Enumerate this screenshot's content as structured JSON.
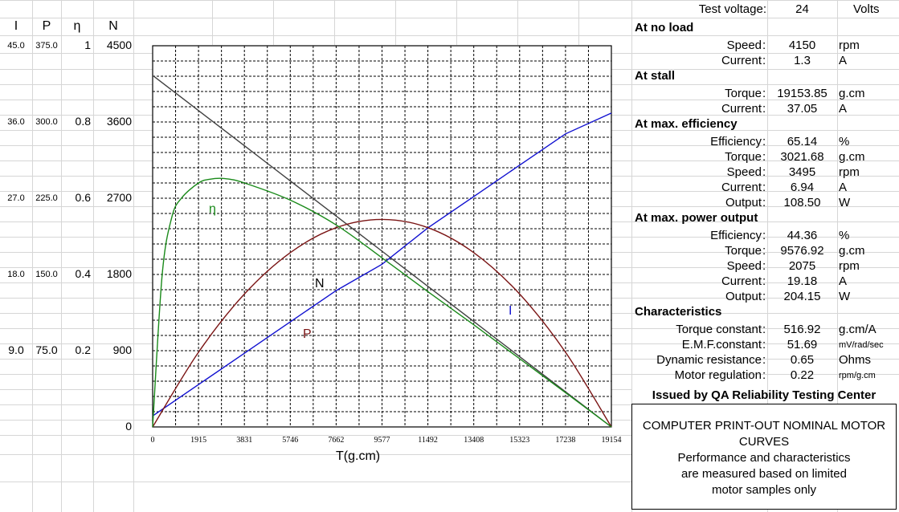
{
  "left_headers": {
    "i": "I",
    "p": "P",
    "eta": "η",
    "n": "N"
  },
  "left_rows": [
    {
      "i": "45.0",
      "p": "375.0",
      "eta": "1",
      "n": "4500"
    },
    {
      "i": "36.0",
      "p": "300.0",
      "eta": "0.8",
      "n": "3600"
    },
    {
      "i": "27.0",
      "p": "225.0",
      "eta": "0.6",
      "n": "2700"
    },
    {
      "i": "18.0",
      "p": "150.0",
      "eta": "0.4",
      "n": "1800"
    },
    {
      "i": "9.0",
      "p": "75.0",
      "eta": "0.2",
      "n": "900"
    },
    {
      "i": "",
      "p": "",
      "eta": "",
      "n": "0"
    }
  ],
  "test_voltage": {
    "label": "Test voltage:",
    "value": "24",
    "unit": "Volts"
  },
  "sections": [
    {
      "title": "At no load",
      "rows": [
        {
          "label": "Speed",
          "value": "4150",
          "unit": "rpm"
        },
        {
          "label": "Current",
          "value": "1.3",
          "unit": "A"
        }
      ]
    },
    {
      "title": "At stall",
      "rows": [
        {
          "label": "Torque",
          "value": "19153.85",
          "unit": "g.cm"
        },
        {
          "label": "Current",
          "value": "37.05",
          "unit": "A"
        }
      ]
    },
    {
      "title": "At max. efficiency",
      "rows": [
        {
          "label": "Efficiency",
          "value": "65.14",
          "unit": "%"
        },
        {
          "label": "Torque",
          "value": "3021.68",
          "unit": "g.cm"
        },
        {
          "label": "Speed",
          "value": "3495",
          "unit": "rpm"
        },
        {
          "label": "Current",
          "value": "6.94",
          "unit": "A"
        },
        {
          "label": "Output",
          "value": "108.50",
          "unit": "W"
        }
      ]
    },
    {
      "title": "At max. power output",
      "rows": [
        {
          "label": "Efficiency",
          "value": "44.36",
          "unit": "%"
        },
        {
          "label": "Torque",
          "value": "9576.92",
          "unit": "g.cm"
        },
        {
          "label": "Speed",
          "value": "2075",
          "unit": "rpm"
        },
        {
          "label": "Current",
          "value": "19.18",
          "unit": "A"
        },
        {
          "label": "Output",
          "value": "204.15",
          "unit": "W"
        }
      ]
    },
    {
      "title": "Characteristics",
      "rows": [
        {
          "label": "Torque constant",
          "value": "516.92",
          "unit": "g.cm/A"
        },
        {
          "label": "E.M.F.constant",
          "value": "51.69",
          "unit": "mV/rad/sec"
        },
        {
          "label": "Dynamic resistance",
          "value": "0.65",
          "unit": "Ohms"
        },
        {
          "label": "Motor regulation",
          "value": "0.22",
          "unit": "rpm/g.cm"
        }
      ]
    }
  ],
  "issued_by": "Issued by QA Reliability Testing Center",
  "note_lines": [
    "COMPUTER PRINT-OUT NOMINAL MOTOR",
    "CURVES",
    "Performance and characteristics",
    "are measured based on limited",
    "motor samples only"
  ],
  "colors": {
    "speed": "#404040",
    "current": "#1010d0",
    "power": "#7a1414",
    "efficiency": "#1a8a1a"
  },
  "chart_data": {
    "type": "line",
    "xlabel": "T(g.cm)",
    "x_ticks": [
      "0",
      "1915",
      "3831",
      "5746",
      "7662",
      "9577",
      "11492",
      "13408",
      "15323",
      "17238",
      "19154"
    ],
    "xlim": [
      0,
      19154
    ],
    "grid": true,
    "series": [
      {
        "name": "N",
        "key": "speed",
        "quantity": "speed (rpm)",
        "axis_max": 4500,
        "x": [
          0,
          1915,
          3831,
          5746,
          7662,
          9577,
          11492,
          13408,
          15323,
          17238,
          19154
        ],
        "values": [
          4150,
          3735,
          3320,
          2905,
          2490,
          2075,
          1660,
          1245,
          830,
          415,
          0
        ]
      },
      {
        "name": "I",
        "key": "current",
        "quantity": "current (A)",
        "axis_max": 45,
        "x": [
          0,
          1915,
          3831,
          5746,
          7662,
          9577,
          11492,
          13408,
          15323,
          17238,
          19154
        ],
        "values": [
          1.3,
          5.0,
          8.7,
          12.4,
          16.1,
          19.2,
          23.5,
          27.2,
          30.9,
          34.6,
          37.05
        ]
      },
      {
        "name": "P",
        "key": "power",
        "quantity": "output power (W)",
        "axis_max": 375,
        "x": [
          0,
          1915,
          3831,
          5746,
          7662,
          9577,
          11492,
          13408,
          15323,
          17238,
          19154
        ],
        "values": [
          0,
          73.5,
          130.7,
          171.5,
          196.0,
          204.15,
          196.0,
          171.5,
          130.7,
          73.5,
          0
        ]
      },
      {
        "name": "η",
        "key": "efficiency",
        "quantity": "efficiency",
        "axis_max": 1,
        "x": [
          0,
          400,
          800,
          1200,
          1915,
          2400,
          3021.68,
          3831,
          5746,
          7662,
          9577,
          11492,
          13408,
          15323,
          17238,
          19154
        ],
        "values": [
          0,
          0.4,
          0.55,
          0.6,
          0.64,
          0.65,
          0.6514,
          0.64,
          0.595,
          0.53,
          0.4436,
          0.355,
          0.268,
          0.179,
          0.09,
          0
        ]
      }
    ]
  }
}
